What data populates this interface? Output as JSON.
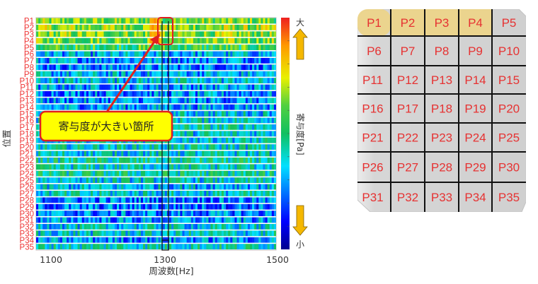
{
  "chart_data": {
    "type": "heatmap",
    "title": "",
    "xlabel": "周波数[Hz]",
    "ylabel": "位置",
    "xlim": [
      1100,
      1500
    ],
    "x_ticks": [
      "1100",
      "1300",
      "1500"
    ],
    "rows": [
      "P1",
      "P2",
      "P3",
      "P4",
      "P5",
      "P6",
      "P7",
      "P8",
      "P9",
      "P10",
      "P11",
      "P12",
      "P13",
      "P14",
      "P15",
      "P16",
      "P17",
      "P18",
      "P19",
      "P20",
      "P21",
      "P22",
      "P23",
      "P24",
      "P25",
      "P26",
      "P27",
      "P28",
      "P29",
      "P30",
      "P31",
      "P32",
      "P33",
      "P34",
      "P35"
    ],
    "row_level": [
      0.62,
      0.66,
      0.64,
      0.62,
      0.55,
      0.32,
      0.3,
      0.26,
      0.32,
      0.36,
      0.3,
      0.28,
      0.28,
      0.3,
      0.36,
      0.4,
      0.42,
      0.38,
      0.38,
      0.4,
      0.38,
      0.44,
      0.4,
      0.44,
      0.38,
      0.34,
      0.38,
      0.26,
      0.24,
      0.26,
      0.28,
      0.36,
      0.38,
      0.28,
      0.42
    ],
    "highlight_band_hz": [
      1292,
      1302
    ],
    "highlight_rows": [
      "P1",
      "P2",
      "P3",
      "P4"
    ],
    "colorbar": {
      "label": "寄与度[Pa]",
      "max_label": "大",
      "min_label": "小",
      "colormap": "jet"
    },
    "annotation": "寄与度が大きい箇所"
  },
  "grid_panel": {
    "columns": 5,
    "cells": [
      "P1",
      "P2",
      "P3",
      "P4",
      "P5",
      "P6",
      "P7",
      "P8",
      "P9",
      "P10",
      "P11",
      "P12",
      "P13",
      "P14",
      "P15",
      "P16",
      "P17",
      "P18",
      "P19",
      "P20",
      "P21",
      "P22",
      "P23",
      "P24",
      "P25",
      "P26",
      "P27",
      "P28",
      "P29",
      "P30",
      "P31",
      "P32",
      "P33",
      "P34",
      "P35"
    ],
    "highlighted": [
      "P1",
      "P2",
      "P3",
      "P4"
    ]
  },
  "colors": {
    "label_red": "#ee3333",
    "callout_fill": "#ffff00",
    "callout_border": "#e02020",
    "arrow_fill": "#f5b800",
    "cell_bg": "#d4d4d4",
    "cell_highlight": "#ecd48a"
  }
}
